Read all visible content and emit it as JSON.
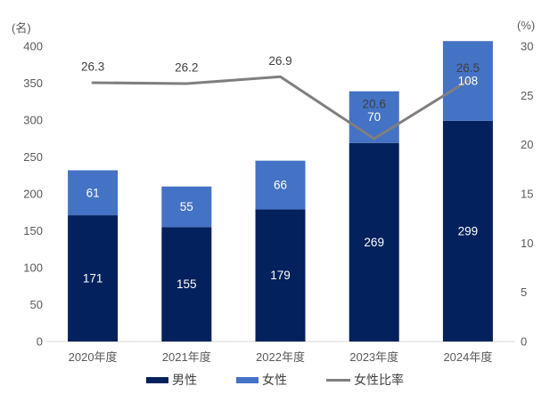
{
  "chart_data": {
    "type": "bar+line",
    "title": "",
    "categories": [
      "2020年度",
      "2021年度",
      "2022年度",
      "2023年度",
      "2024年度"
    ],
    "series": [
      {
        "name": "男性",
        "type": "bar",
        "stacked": true,
        "color": "#03215c",
        "label_color": "#ffffff",
        "values": [
          171,
          155,
          179,
          269,
          299
        ]
      },
      {
        "name": "女性",
        "type": "bar",
        "stacked": true,
        "color": "#4472c4",
        "label_color": "#ffffff",
        "values": [
          61,
          55,
          66,
          70,
          108
        ]
      },
      {
        "name": "女性比率",
        "type": "line",
        "axis": "right",
        "color": "#7f7f7f",
        "label_color": "#404040",
        "values": [
          26.3,
          26.2,
          26.9,
          20.6,
          26.5
        ]
      }
    ],
    "left_axis": {
      "label": "(名)",
      "min": 0,
      "max": 400,
      "ticks": [
        0,
        50,
        100,
        150,
        200,
        250,
        300,
        350,
        400
      ]
    },
    "right_axis": {
      "label": "(%)",
      "min": 0,
      "max": 30,
      "ticks": [
        0,
        5,
        10,
        15,
        20,
        25,
        30
      ]
    },
    "legend_position": "bottom",
    "gridlines": false,
    "colors": {
      "axis_text": "#595959",
      "category_text": "#595959",
      "baseline": "#d9d9d9",
      "background": "#ffffff"
    }
  }
}
